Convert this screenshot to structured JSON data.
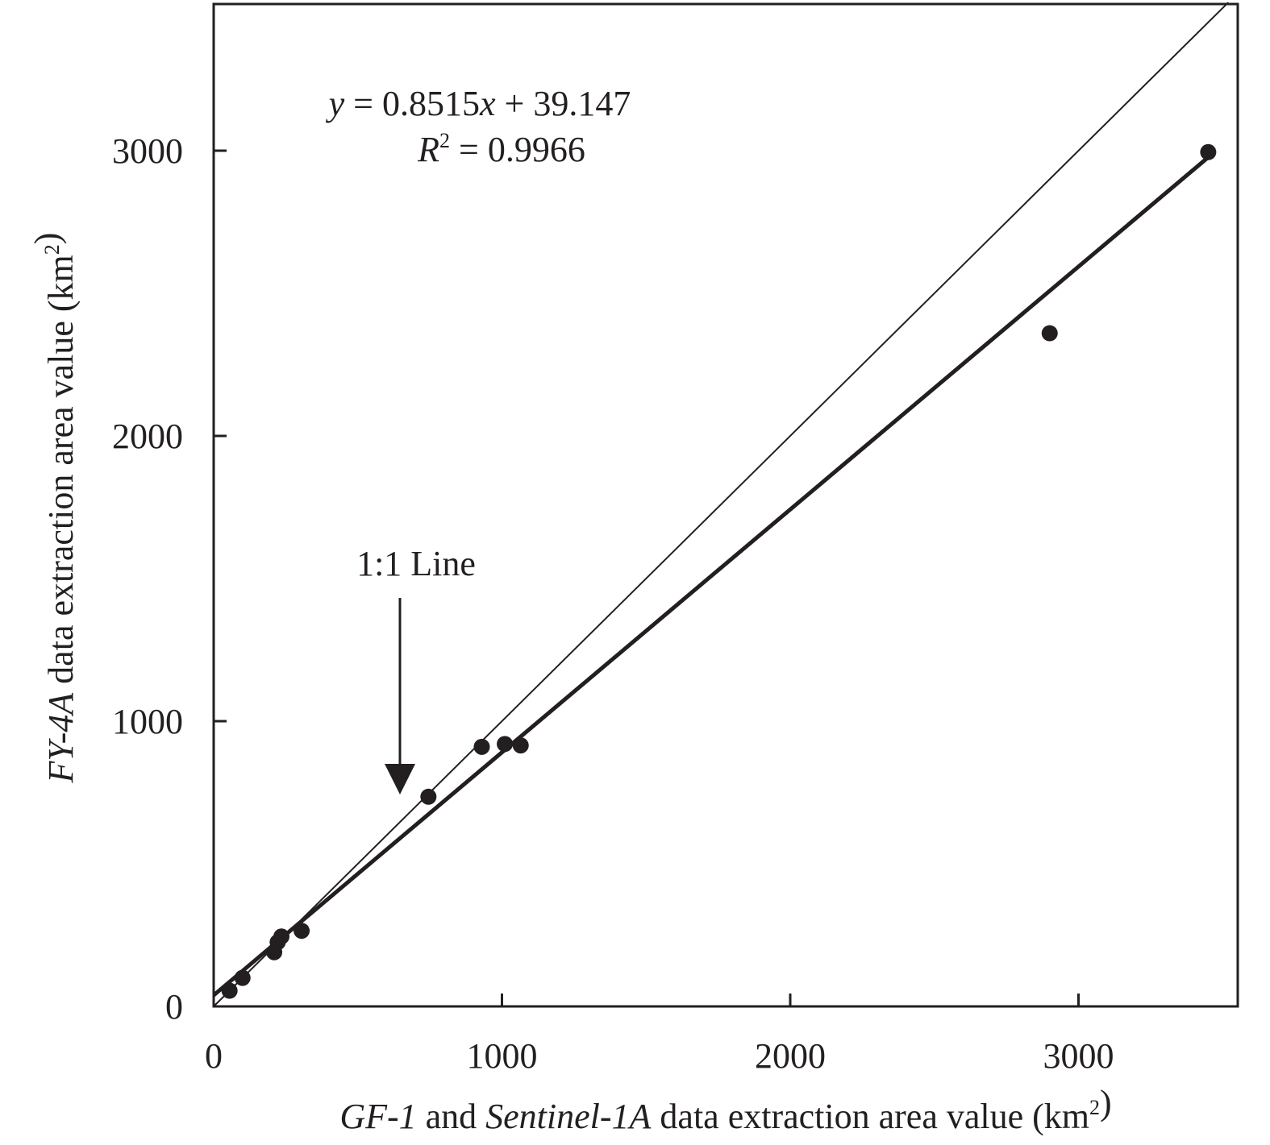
{
  "chart_data": {
    "type": "scatter",
    "xlabel": {
      "parts": [
        {
          "text": "GF-1",
          "italic": true
        },
        {
          "text": " and ",
          "italic": false
        },
        {
          "text": "Sentinel-1A",
          "italic": true
        },
        {
          "text": " data extraction area value (km",
          "italic": false
        },
        {
          "text": "2",
          "sup": true
        },
        {
          "text": ")",
          "italic": false
        }
      ]
    },
    "ylabel": {
      "parts": [
        {
          "text": "FY-4A",
          "italic": true
        },
        {
          "text": " data extraction area value (km",
          "italic": false
        },
        {
          "text": "2",
          "sup": true
        },
        {
          "text": ")",
          "italic": false
        }
      ]
    },
    "xlim": [
      0,
      3550
    ],
    "ylim": [
      0,
      3520
    ],
    "xticks": [
      0,
      1000,
      2000,
      3000
    ],
    "yticks": [
      0,
      1000,
      2000,
      3000
    ],
    "grid": false,
    "points": [
      {
        "x": 55,
        "y": 55
      },
      {
        "x": 100,
        "y": 100
      },
      {
        "x": 210,
        "y": 190
      },
      {
        "x": 222,
        "y": 225
      },
      {
        "x": 235,
        "y": 245
      },
      {
        "x": 305,
        "y": 265
      },
      {
        "x": 745,
        "y": 735
      },
      {
        "x": 930,
        "y": 910
      },
      {
        "x": 1010,
        "y": 920
      },
      {
        "x": 1065,
        "y": 915
      },
      {
        "x": 2900,
        "y": 2360
      },
      {
        "x": 3450,
        "y": 2995
      }
    ],
    "regression": {
      "slope": 0.8515,
      "intercept": 39.147,
      "x_range": [
        0,
        3450
      ]
    },
    "identity_line": {
      "label": "1:1 Line"
    },
    "equation": {
      "y_sym": "y",
      "eq": " = 0.8515",
      "x_sym": "x",
      "rest": " + 39.147"
    },
    "r_squared": {
      "sym": "R",
      "sup": "2",
      "rest": " = 0.9966"
    }
  }
}
